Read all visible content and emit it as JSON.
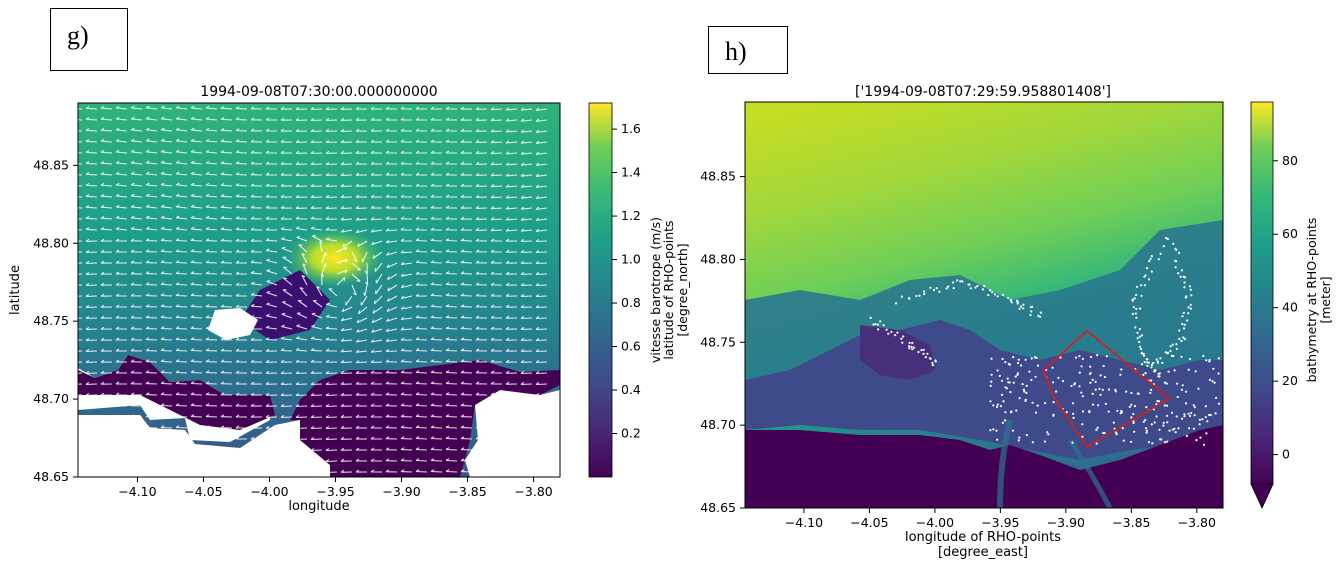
{
  "panels": {
    "g": "g)",
    "h": "h)"
  },
  "chart_data": [
    {
      "type": "heatmap",
      "title": "1994-09-08T07:30:00.000000000",
      "xlabel": "longitude",
      "ylabel": "latitude",
      "xlim": [
        -4.145,
        -3.78
      ],
      "ylim": [
        48.65,
        48.89
      ],
      "xticks": [
        "−4.10",
        "−4.05",
        "−4.00",
        "−3.95",
        "−3.90",
        "−3.85",
        "−3.80"
      ],
      "yticks": [
        "48.65",
        "48.70",
        "48.75",
        "48.80",
        "48.85"
      ],
      "colorbar": {
        "colormap": "viridis",
        "label_lines": [
          "vitesse barotrope (m/s)",
          "latitude of RHO-points",
          "[degree_north]"
        ],
        "range": [
          0.0,
          1.72
        ],
        "ticks": [
          "0.2",
          "0.4",
          "0.6",
          "0.8",
          "1.0",
          "1.2",
          "1.4",
          "1.6"
        ]
      },
      "overlay": "white velocity vectors (quiver)",
      "feature": {
        "max_speed_location": [
          -3.945,
          48.795
        ],
        "max_speed": 1.72
      }
    },
    {
      "type": "heatmap",
      "title": "['1994-09-08T07:29:59.958801408']",
      "xlabel_lines": [
        "longitude of RHO-points",
        "[degree_east]"
      ],
      "ylim": [
        48.65,
        48.895
      ],
      "xlim": [
        -4.145,
        -3.78
      ],
      "xticks": [
        "−4.10",
        "−4.05",
        "−4.00",
        "−3.95",
        "−3.90",
        "−3.85",
        "−3.80"
      ],
      "yticks": [
        "48.65",
        "48.70",
        "48.75",
        "48.80",
        "48.85"
      ],
      "colorbar": {
        "colormap": "viridis",
        "label_lines": [
          "bathymetry at RHO-points",
          "[meter]"
        ],
        "range": [
          -8,
          96
        ],
        "ticks": [
          "0",
          "20",
          "40",
          "60",
          "80"
        ],
        "extend": "min"
      },
      "overlay": "white particle positions",
      "polygon": {
        "color": "#cc2222",
        "vertices": [
          [
            -3.884,
            48.757
          ],
          [
            -3.821,
            48.716
          ],
          [
            -3.884,
            48.687
          ],
          [
            -3.91,
            48.718
          ],
          [
            -3.917,
            48.733
          ]
        ]
      }
    }
  ]
}
